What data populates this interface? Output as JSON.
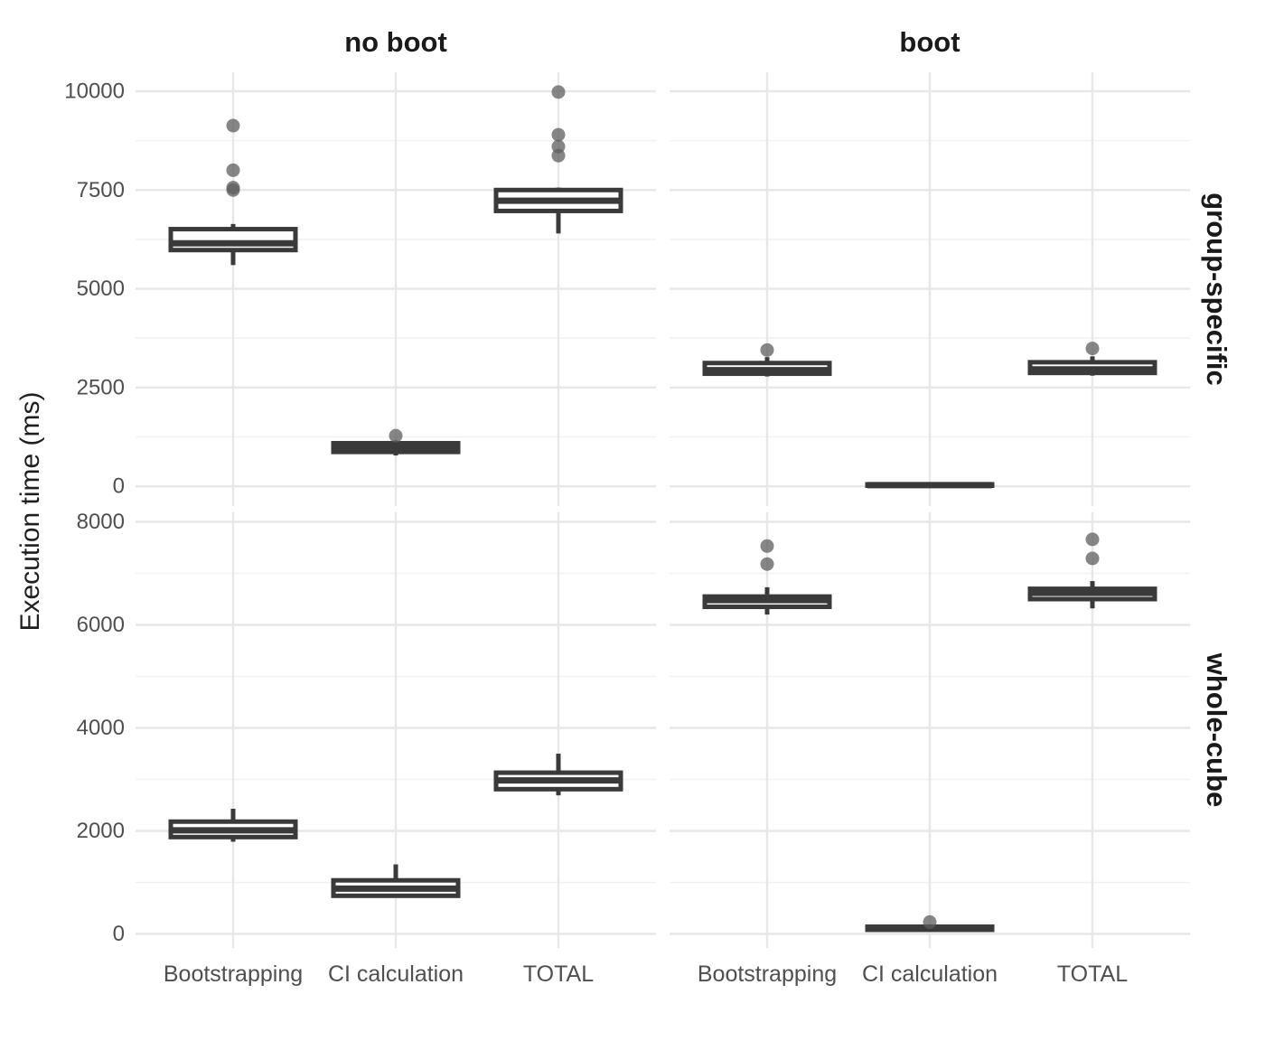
{
  "chart_data": {
    "type": "boxplot",
    "title": "",
    "y_label": "Execution time (ms)",
    "x_label": "",
    "legend": "none",
    "grid": "on",
    "facet_layout": "grid: columns = boot condition, rows = cube scope, free y scales per row",
    "columns": [
      "no boot",
      "boot"
    ],
    "categories": [
      "Bootstrapping",
      "CI calculation",
      "TOTAL"
    ],
    "rows": [
      {
        "label": "group-specific",
        "ylim": [
          -500,
          10480
        ],
        "major_ticks": [
          0,
          2500,
          5000,
          7500,
          10000
        ],
        "minor_ticks": [
          1250,
          3750,
          6250,
          8750
        ]
      },
      {
        "label": "whole-cube",
        "ylim": [
          -272,
          8184
        ],
        "major_ticks": [
          0,
          2000,
          4000,
          6000,
          8000
        ],
        "minor_ticks": [
          1000,
          3000,
          5000,
          7000
        ]
      }
    ],
    "panels": [
      {
        "row": "group-specific",
        "col": "no boot",
        "boxes": [
          {
            "category": "Bootstrapping",
            "whisker_low": 5600,
            "q1": 5980,
            "median": 6150,
            "q3": 6510,
            "whisker_high": 6640,
            "outliers": [
              7500,
              7560,
              8000,
              9130
            ]
          },
          {
            "category": "CI calculation",
            "whisker_low": 780,
            "q1": 870,
            "median": 980,
            "q3": 1090,
            "whisker_high": 1160,
            "outliers": [
              1280
            ]
          },
          {
            "category": "TOTAL",
            "whisker_low": 6400,
            "q1": 6970,
            "median": 7230,
            "q3": 7500,
            "whisker_high": 7560,
            "outliers": [
              8370,
              8600,
              8900,
              9980
            ]
          }
        ]
      },
      {
        "row": "group-specific",
        "col": "boot",
        "boxes": [
          {
            "category": "Bootstrapping",
            "whisker_low": 2780,
            "q1": 2850,
            "median": 2940,
            "q3": 3120,
            "whisker_high": 3270,
            "outliers": [
              3450
            ]
          },
          {
            "category": "CI calculation",
            "whisker_low": 5,
            "q1": 15,
            "median": 30,
            "q3": 50,
            "whisker_high": 80,
            "outliers": []
          },
          {
            "category": "TOTAL",
            "whisker_low": 2800,
            "q1": 2870,
            "median": 2960,
            "q3": 3140,
            "whisker_high": 3290,
            "outliers": [
              3490
            ]
          }
        ]
      },
      {
        "row": "whole-cube",
        "col": "no boot",
        "boxes": [
          {
            "category": "Bootstrapping",
            "whisker_low": 1790,
            "q1": 1880,
            "median": 2010,
            "q3": 2180,
            "whisker_high": 2430,
            "outliers": []
          },
          {
            "category": "CI calculation",
            "whisker_low": 730,
            "q1": 740,
            "median": 880,
            "q3": 1040,
            "whisker_high": 1350,
            "outliers": []
          },
          {
            "category": "TOTAL",
            "whisker_low": 2690,
            "q1": 2810,
            "median": 2980,
            "q3": 3130,
            "whisker_high": 3500,
            "outliers": []
          }
        ]
      },
      {
        "row": "whole-cube",
        "col": "boot",
        "boxes": [
          {
            "category": "Bootstrapping",
            "whisker_low": 6200,
            "q1": 6350,
            "median": 6480,
            "q3": 6550,
            "whisker_high": 6730,
            "outliers": [
              7180,
              7530
            ]
          },
          {
            "category": "CI calculation",
            "whisker_low": 60,
            "q1": 80,
            "median": 110,
            "q3": 140,
            "whisker_high": 170,
            "outliers": [
              230
            ]
          },
          {
            "category": "TOTAL",
            "whisker_low": 6320,
            "q1": 6500,
            "median": 6620,
            "q3": 6700,
            "whisker_high": 6850,
            "outliers": [
              7290,
              7660
            ]
          }
        ]
      }
    ],
    "colors": {
      "box_stroke": "#3a3a3a",
      "box_fill": "#ffffff",
      "outlier_fill": "#5e5e5e",
      "grid_major": "#e7e7e7",
      "grid_minor": "#f2f2f2",
      "tick_text": "#4f4f4f",
      "strip_text": "#1a1a1a",
      "background": "#ffffff"
    }
  }
}
